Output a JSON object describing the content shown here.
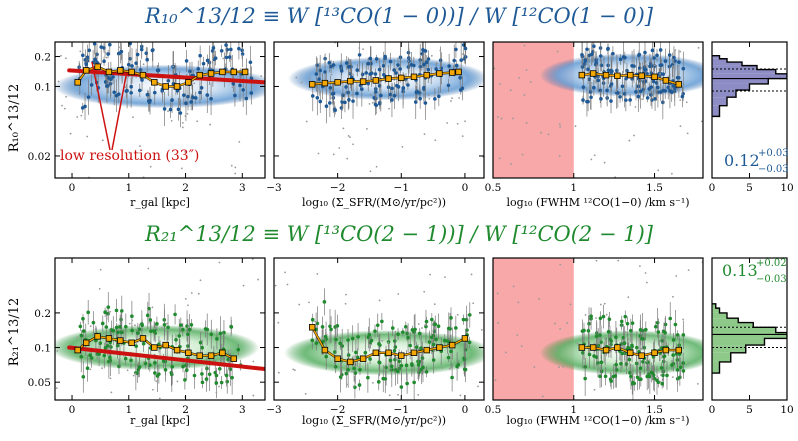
{
  "titles": {
    "top": "R₁₀^13/12 ≡ W [¹³CO(1 − 0))] / W [¹²CO(1 − 0)]",
    "bottom": "R₂₁^13/12 ≡ W [¹³CO(2 − 1))] / W [¹²CO(2 − 1)]"
  },
  "colors": {
    "top": "#1f5a96",
    "bottom": "#1f8a2e",
    "top_fill": "#8e8cc4",
    "bottom_fill": "#8fc98a",
    "binned": "#f5a800",
    "lowres": "#cc1111",
    "shade": "#f8a8a8"
  },
  "labels": {
    "ylabel_top": "R₁₀^13/12",
    "ylabel_bottom": "R₂₁^13/12",
    "xlabel_rgal": "r_gal [kpc]",
    "xlabel_sfr": "log₁₀ (Σ_SFR/(M⊙/yr/pc²))",
    "xlabel_fwhm": "log₁₀ (FWHM ¹²CO(1−0) /km s⁻¹)",
    "annotation": "low resolution (33″)",
    "stat_top": "0.12",
    "stat_top_up": "+0.03",
    "stat_top_dn": "−0.03",
    "stat_bottom": "0.13",
    "stat_bottom_up": "+0.02",
    "stat_bottom_dn": "−0.03"
  },
  "chart_data": [
    {
      "id": "r10_rgal",
      "type": "scatter",
      "x_scale": "linear",
      "y_scale": "log",
      "xlim": [
        -0.3,
        3.4
      ],
      "ylim": [
        0.012,
        0.28
      ],
      "xticks": [
        0,
        1,
        2,
        3
      ],
      "yticks": [
        0.02,
        0.1,
        0.2
      ],
      "ytick_labels": [
        "0.02",
        "0.1",
        "0.2"
      ],
      "binned": {
        "x": [
          0.1,
          0.25,
          0.45,
          0.65,
          0.85,
          1.05,
          1.25,
          1.45,
          1.65,
          1.85,
          2.05,
          2.25,
          2.45,
          2.65,
          2.85,
          3.05
        ],
        "y": [
          0.11,
          0.145,
          0.158,
          0.14,
          0.145,
          0.14,
          0.13,
          0.11,
          0.1,
          0.1,
          0.11,
          0.13,
          0.135,
          0.14,
          0.14,
          0.14
        ]
      },
      "lowres": {
        "x": [
          -0.05,
          3.4
        ],
        "y": [
          0.145,
          0.11
        ]
      }
    },
    {
      "id": "r10_sfr",
      "type": "scatter",
      "x_scale": "linear",
      "y_scale": "log",
      "xlim": [
        -3.0,
        0.3
      ],
      "ylim": [
        0.012,
        0.28
      ],
      "xticks": [
        -3,
        -2,
        -1,
        0
      ],
      "yticks": [
        0.02,
        0.1,
        0.2
      ],
      "binned": {
        "x": [
          -2.4,
          -2.2,
          -2.0,
          -1.8,
          -1.6,
          -1.4,
          -1.2,
          -1.0,
          -0.8,
          -0.6,
          -0.4,
          -0.2,
          -0.1
        ],
        "y": [
          0.105,
          0.108,
          0.11,
          0.113,
          0.112,
          0.115,
          0.12,
          0.122,
          0.125,
          0.13,
          0.135,
          0.138,
          0.14
        ]
      }
    },
    {
      "id": "r10_fwhm",
      "type": "scatter",
      "x_scale": "linear",
      "y_scale": "log",
      "xlim": [
        0.5,
        1.8
      ],
      "ylim": [
        0.012,
        0.28
      ],
      "xticks": [
        0.5,
        1.0,
        1.5
      ],
      "xtick_labels": [
        "0.5",
        "1",
        "1.5"
      ],
      "shade": [
        0.5,
        1.0
      ],
      "binned": {
        "x": [
          1.05,
          1.12,
          1.2,
          1.27,
          1.35,
          1.42,
          1.5,
          1.57,
          1.65
        ],
        "y": [
          0.13,
          0.135,
          0.13,
          0.128,
          0.13,
          0.128,
          0.125,
          0.115,
          0.105
        ]
      }
    },
    {
      "id": "r10_hist",
      "type": "bar",
      "orientation": "horizontal",
      "xlim": [
        0,
        10
      ],
      "ylim": [
        0.012,
        0.28
      ],
      "xticks": [
        0,
        5,
        10
      ],
      "bins": [
        0.05,
        0.064,
        0.078,
        0.092,
        0.106,
        0.12,
        0.134,
        0.148,
        0.162,
        0.176,
        0.19,
        0.204
      ],
      "counts": [
        1.0,
        2.0,
        3.2,
        5.0,
        7.5,
        10.0,
        8.5,
        6.0,
        4.0,
        2.0,
        1.0
      ],
      "median": 0.12,
      "p16": 0.09,
      "p84": 0.15
    },
    {
      "id": "r21_rgal",
      "type": "scatter",
      "x_scale": "linear",
      "y_scale": "log",
      "xlim": [
        -0.3,
        3.4
      ],
      "ylim": [
        0.035,
        0.6
      ],
      "xticks": [
        0,
        1,
        2,
        3
      ],
      "yticks": [
        0.05,
        0.1,
        0.2
      ],
      "ytick_labels": [
        "0.05",
        "0.1",
        "0.2"
      ],
      "binned": {
        "x": [
          0.1,
          0.25,
          0.45,
          0.65,
          0.85,
          1.05,
          1.25,
          1.45,
          1.65,
          1.85,
          2.05,
          2.25,
          2.45,
          2.65,
          2.85
        ],
        "y": [
          0.095,
          0.11,
          0.125,
          0.12,
          0.115,
          0.11,
          0.12,
          0.1,
          0.105,
          0.095,
          0.09,
          0.085,
          0.085,
          0.09,
          0.08
        ]
      },
      "lowres": {
        "x": [
          -0.05,
          3.4
        ],
        "y": [
          0.1,
          0.065
        ]
      }
    },
    {
      "id": "r21_sfr",
      "type": "scatter",
      "x_scale": "linear",
      "y_scale": "log",
      "xlim": [
        -3.0,
        0.3
      ],
      "ylim": [
        0.035,
        0.6
      ],
      "xticks": [
        -3,
        -2,
        -1,
        0
      ],
      "yticks": [
        0.05,
        0.1,
        0.2
      ],
      "binned": {
        "x": [
          -2.4,
          -2.2,
          -2.0,
          -1.8,
          -1.6,
          -1.4,
          -1.2,
          -1.0,
          -0.8,
          -0.6,
          -0.4,
          -0.2,
          0.0
        ],
        "y": [
          0.15,
          0.095,
          0.08,
          0.075,
          0.08,
          0.09,
          0.09,
          0.085,
          0.09,
          0.095,
          0.1,
          0.105,
          0.12
        ]
      }
    },
    {
      "id": "r21_fwhm",
      "type": "scatter",
      "x_scale": "linear",
      "y_scale": "log",
      "xlim": [
        0.5,
        1.8
      ],
      "ylim": [
        0.035,
        0.6
      ],
      "xticks": [
        0.5,
        1.0,
        1.5
      ],
      "xtick_labels": [
        "0.5",
        "1",
        "1.5"
      ],
      "shade": [
        0.5,
        1.0
      ],
      "binned": {
        "x": [
          1.05,
          1.12,
          1.2,
          1.27,
          1.35,
          1.42,
          1.5,
          1.57,
          1.65
        ],
        "y": [
          0.1,
          0.1,
          0.095,
          0.1,
          0.09,
          0.085,
          0.09,
          0.095,
          0.095
        ]
      }
    },
    {
      "id": "r21_hist",
      "type": "bar",
      "orientation": "horizontal",
      "xlim": [
        0,
        10
      ],
      "ylim": [
        0.035,
        0.6
      ],
      "xticks": [
        0,
        5,
        10
      ],
      "bins": [
        0.06,
        0.075,
        0.09,
        0.105,
        0.12,
        0.135,
        0.15,
        0.165,
        0.18,
        0.2,
        0.22,
        0.24
      ],
      "counts": [
        1.0,
        2.5,
        4.5,
        7.0,
        10.0,
        8.5,
        5.5,
        3.5,
        2.0,
        1.0,
        0.5
      ],
      "median": 0.13,
      "p16": 0.1,
      "p84": 0.15
    }
  ]
}
